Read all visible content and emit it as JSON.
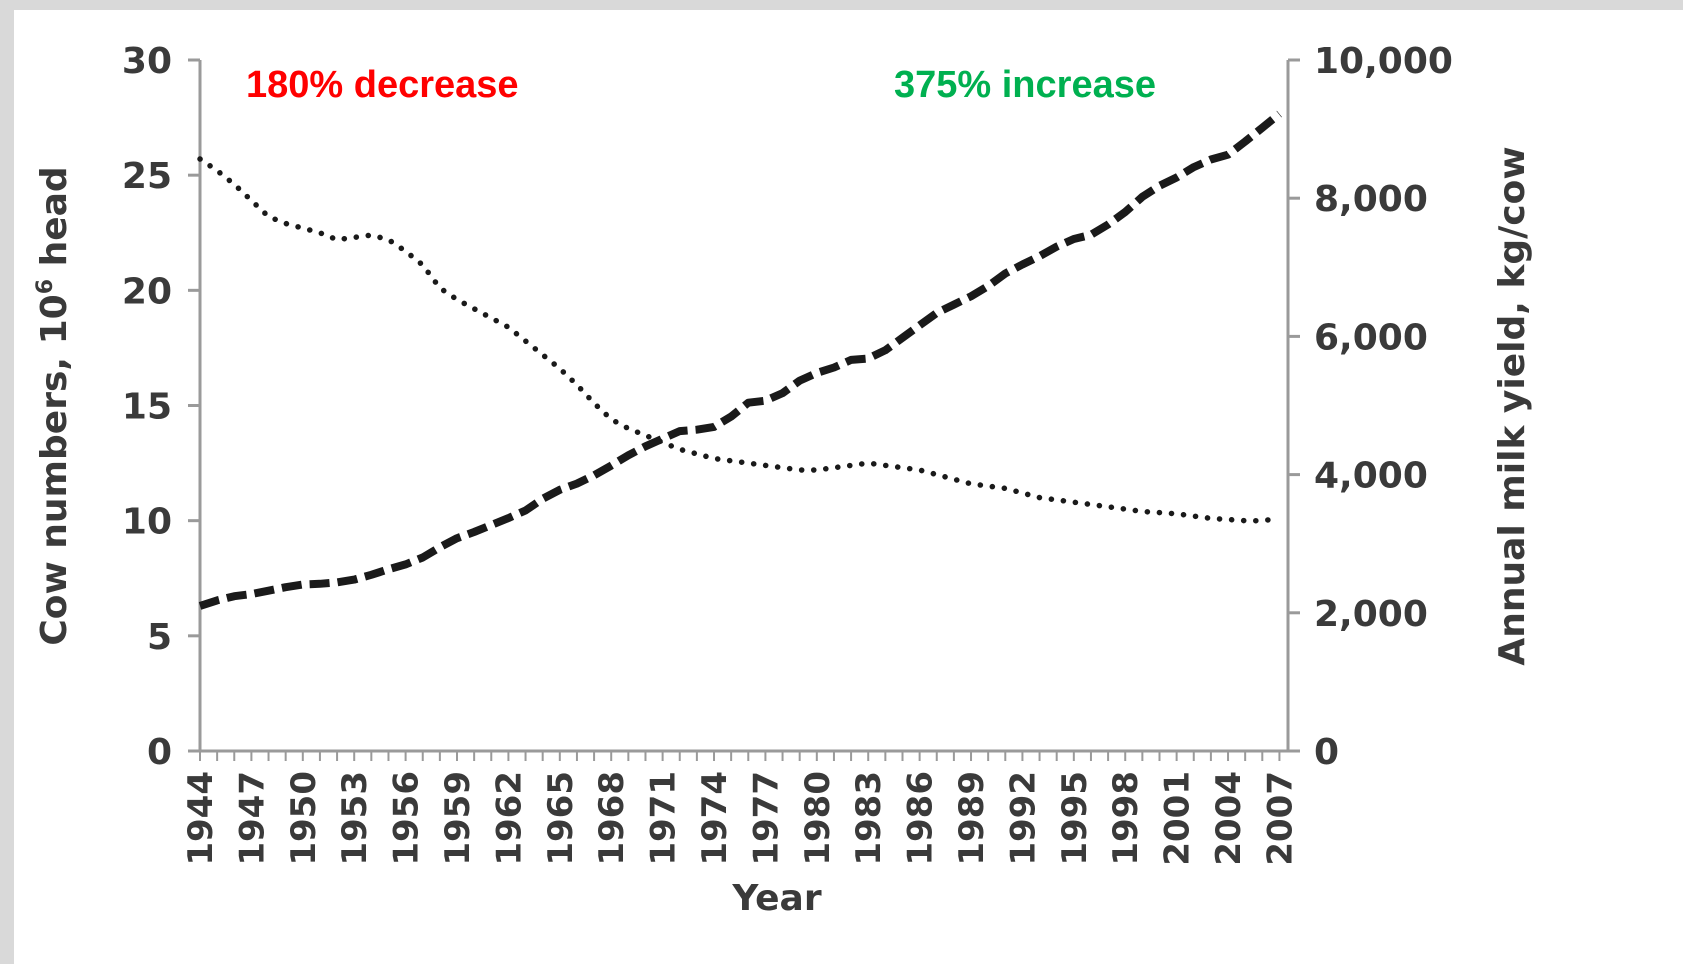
{
  "chart_data": {
    "type": "line",
    "xlabel": "Year",
    "ylabel_left": "Cow numbers, 10",
    "ylabel_left_sup": "6",
    "ylabel_left_suffix": " head",
    "ylabel_right": "Annual milk yield, kg/cow",
    "ylim_left": [
      0,
      30
    ],
    "ylim_right": [
      0,
      10000
    ],
    "left_ticks": [
      "0",
      "5",
      "10",
      "15",
      "20",
      "25",
      "30"
    ],
    "right_ticks": [
      "0",
      "2,000",
      "4,000",
      "6,000",
      "8,000",
      "10,000"
    ],
    "x_tick_labels": [
      "1944",
      "1947",
      "1950",
      "1953",
      "1956",
      "1959",
      "1962",
      "1965",
      "1968",
      "1971",
      "1974",
      "1977",
      "1980",
      "1983",
      "1986",
      "1989",
      "1992",
      "1995",
      "1998",
      "2001",
      "2004",
      "2007"
    ],
    "grid": false,
    "annotations": [
      {
        "text": "180% decrease",
        "color": "#ff0000"
      },
      {
        "text": "375% increase",
        "color": "#00b050"
      }
    ],
    "series": [
      {
        "axis": "left",
        "style": "dotted",
        "x": [
          1944,
          1945,
          1946,
          1947,
          1948,
          1949,
          1950,
          1951,
          1952,
          1953,
          1954,
          1955,
          1956,
          1957,
          1958,
          1959,
          1960,
          1961,
          1962,
          1963,
          1964,
          1965,
          1966,
          1967,
          1968,
          1969,
          1970,
          1971,
          1972,
          1973,
          1974,
          1975,
          1976,
          1977,
          1978,
          1979,
          1980,
          1981,
          1982,
          1983,
          1984,
          1985,
          1986,
          1987,
          1988,
          1989,
          1990,
          1991,
          1992,
          1993,
          1994,
          1995,
          1996,
          1997,
          1998,
          1999,
          2000,
          2001,
          2002,
          2003,
          2004,
          2005,
          2006,
          2007
        ],
        "y": [
          25.7,
          25.2,
          24.6,
          23.9,
          23.2,
          22.9,
          22.7,
          22.5,
          22.2,
          22.3,
          22.4,
          22.2,
          21.7,
          21.1,
          20.1,
          19.6,
          19.2,
          18.8,
          18.4,
          17.8,
          17.2,
          16.6,
          15.9,
          15.1,
          14.4,
          14.0,
          13.7,
          13.4,
          13.1,
          12.9,
          12.7,
          12.6,
          12.5,
          12.4,
          12.3,
          12.2,
          12.2,
          12.3,
          12.4,
          12.5,
          12.4,
          12.3,
          12.2,
          12.0,
          11.8,
          11.6,
          11.5,
          11.4,
          11.2,
          11.0,
          10.9,
          10.8,
          10.7,
          10.6,
          10.5,
          10.4,
          10.35,
          10.3,
          10.2,
          10.1,
          10.05,
          10.0,
          10.0,
          10.1
        ]
      },
      {
        "axis": "right",
        "style": "dashed",
        "x": [
          1944,
          1945,
          1946,
          1947,
          1948,
          1949,
          1950,
          1951,
          1952,
          1953,
          1954,
          1955,
          1956,
          1957,
          1958,
          1959,
          1960,
          1961,
          1962,
          1963,
          1964,
          1965,
          1966,
          1967,
          1968,
          1969,
          1970,
          1971,
          1972,
          1973,
          1974,
          1975,
          1976,
          1977,
          1978,
          1979,
          1980,
          1981,
          1982,
          1983,
          1984,
          1985,
          1986,
          1987,
          1988,
          1989,
          1990,
          1991,
          1992,
          1993,
          1994,
          1995,
          1996,
          1997,
          1998,
          1999,
          2000,
          2001,
          2002,
          2003,
          2004,
          2005,
          2006,
          2007
        ],
        "y": [
          2100,
          2180,
          2240,
          2270,
          2320,
          2370,
          2410,
          2420,
          2440,
          2480,
          2550,
          2630,
          2700,
          2800,
          2950,
          3080,
          3170,
          3270,
          3370,
          3480,
          3650,
          3780,
          3870,
          3990,
          4130,
          4280,
          4410,
          4520,
          4630,
          4650,
          4690,
          4840,
          5040,
          5070,
          5180,
          5360,
          5470,
          5550,
          5660,
          5680,
          5800,
          5980,
          6160,
          6340,
          6460,
          6580,
          6730,
          6910,
          7040,
          7160,
          7300,
          7410,
          7470,
          7620,
          7800,
          8020,
          8180,
          8300,
          8450,
          8560,
          8630,
          8820,
          9020,
          9220
        ]
      }
    ]
  }
}
